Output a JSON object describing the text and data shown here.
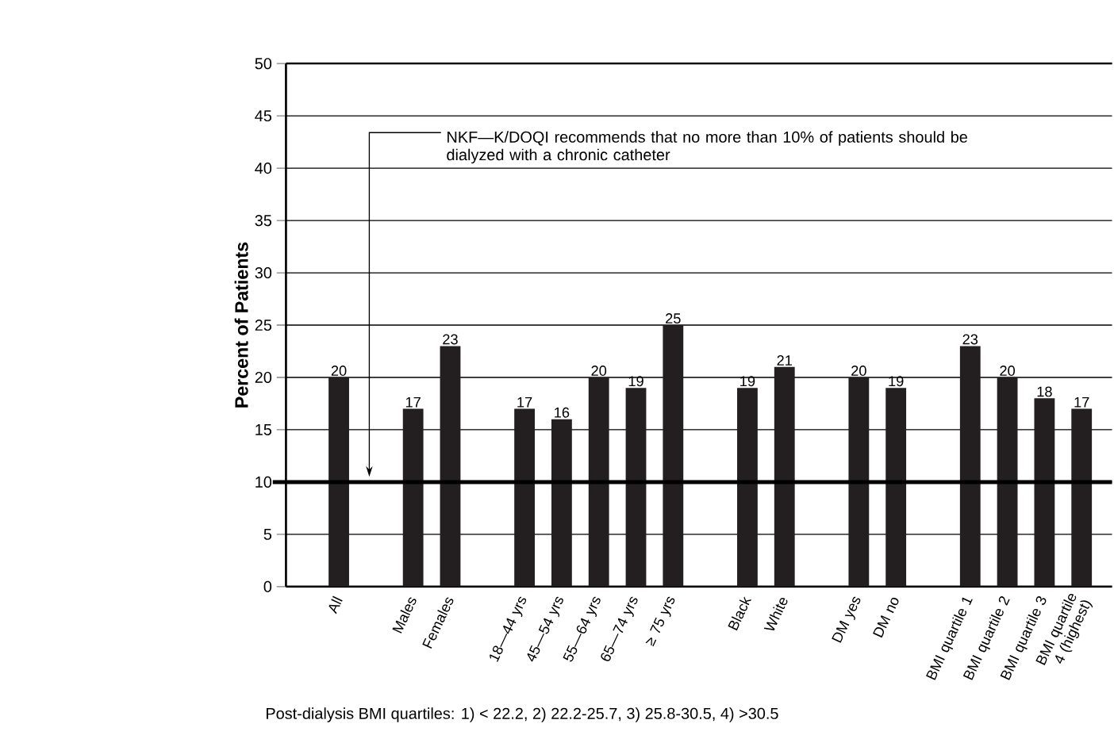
{
  "chart_data": {
    "type": "bar",
    "ylabel": "Percent of Patients",
    "categories": [
      "All",
      null,
      "Males",
      "Females",
      null,
      "18—44 yrs",
      "45—54 yrs",
      "55—64 yrs",
      "65—74 yrs",
      "≥ 75 yrs",
      null,
      "Black",
      "White",
      null,
      "DM yes",
      "DM no",
      null,
      "BMI quartile 1",
      "BMI quartile 2",
      "BMI quartile 3",
      "BMI quartile 4 (highest)"
    ],
    "values": [
      20,
      null,
      17,
      23,
      null,
      17,
      16,
      20,
      19,
      25,
      null,
      19,
      21,
      null,
      20,
      19,
      null,
      23,
      20,
      18,
      17
    ],
    "color": "#231f20",
    "ylim": [
      0,
      50
    ],
    "yticks": [
      0,
      5,
      10,
      15,
      20,
      25,
      30,
      35,
      40,
      45,
      50
    ],
    "grid": "y",
    "data_labels": true,
    "ref_lines": [
      {
        "axis": "y",
        "value": 10,
        "label": "NKF—K/DOQI recommends that no more than 10% of patients should be dialyzed with a chronic catheter",
        "color": "#000000"
      }
    ],
    "annotations": [
      "Post-dialysis BMI quartiles:  1) < 22.2, 2) 22.2-25.7, 3) 25.8-30.5, 4) >30.5"
    ]
  }
}
